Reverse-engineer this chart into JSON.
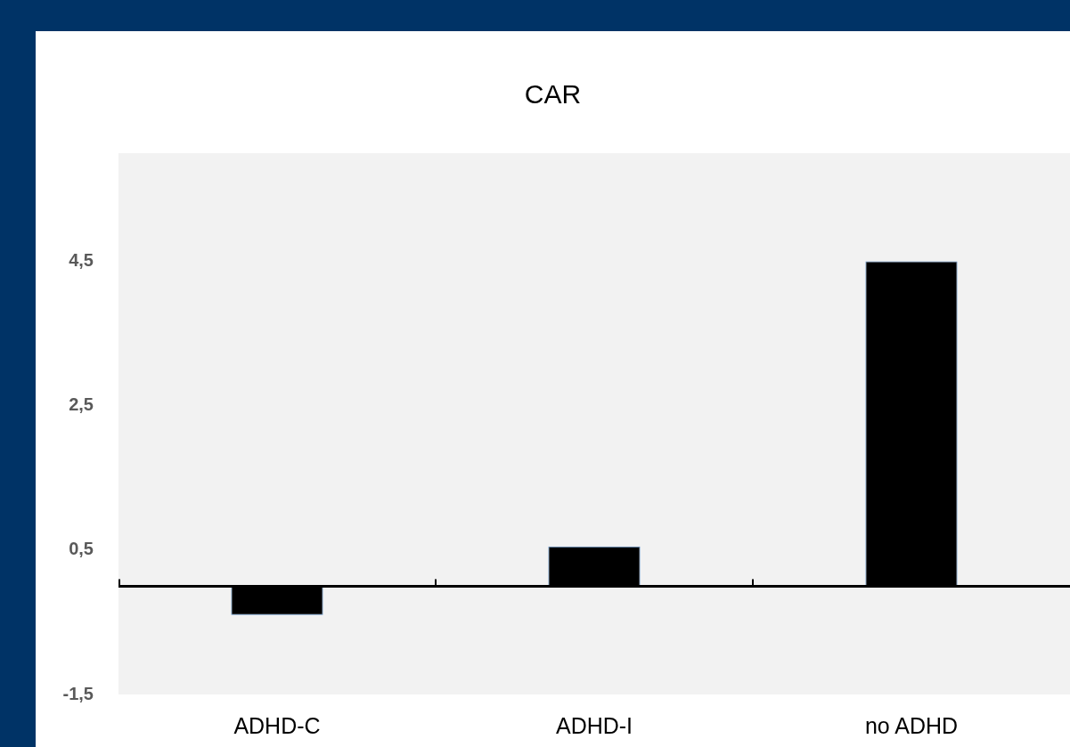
{
  "chart_data": {
    "type": "bar",
    "title": "CAR",
    "categories": [
      "ADHD-C",
      "ADHD-I",
      "no ADHD"
    ],
    "values": [
      -0.4,
      0.55,
      4.5
    ],
    "color": "#000000",
    "ylim": [
      -1.5,
      6
    ],
    "yticks": [
      {
        "value": -1.5,
        "label": "-1,5"
      },
      {
        "value": 0.5,
        "label": "0,5"
      },
      {
        "value": 2.5,
        "label": "2,5"
      },
      {
        "value": 4.5,
        "label": "4,5"
      }
    ],
    "grid": false
  }
}
